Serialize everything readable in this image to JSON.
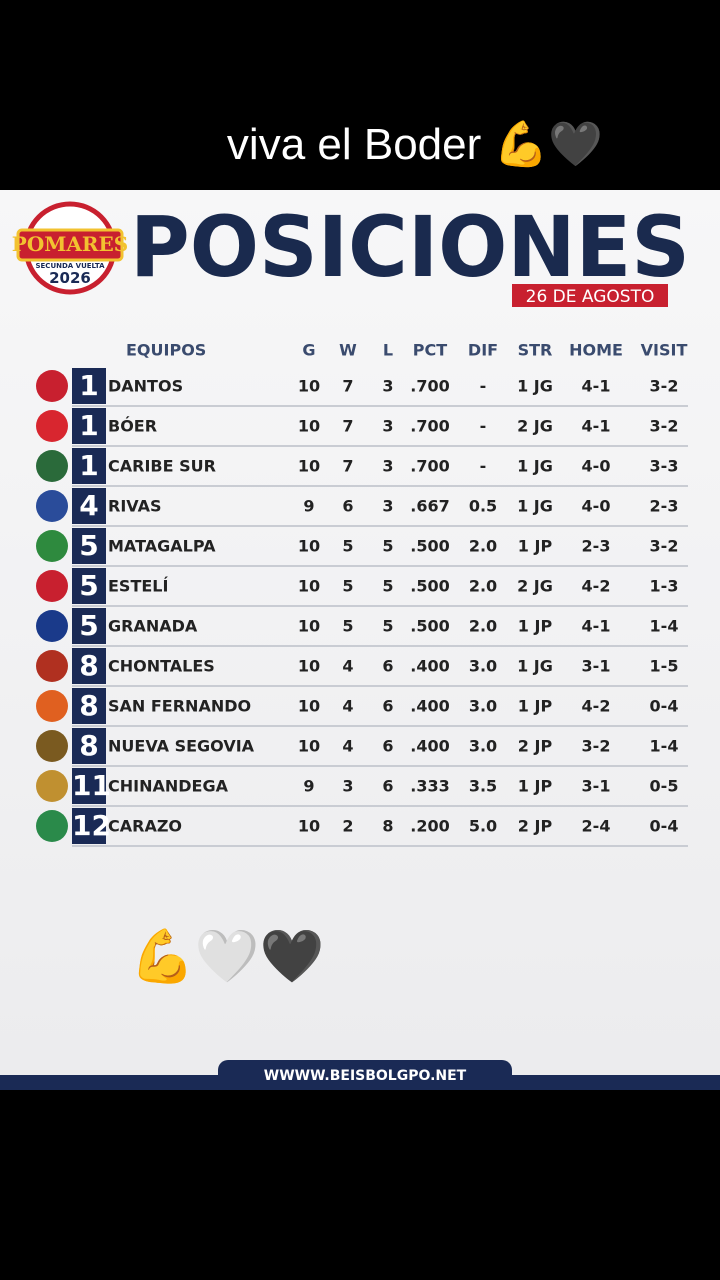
{
  "caption": "viva el Boder 💪🖤",
  "logo": {
    "name": "POMARES",
    "subtitle": "SECUNDA VUELTA",
    "year": "2026"
  },
  "header": {
    "title": "POSICIONES",
    "date": "26 DE AGOSTO"
  },
  "table": {
    "columns": [
      "EQUIPOS",
      "G",
      "W",
      "L",
      "PCT",
      "DIF",
      "STR",
      "HOME",
      "VISIT"
    ],
    "rows": [
      [
        "1",
        "DANTOS",
        "10",
        "7",
        "3",
        ".700",
        "-",
        "1 JG",
        "4-1",
        "3-2"
      ],
      [
        "1",
        "BÓER",
        "10",
        "7",
        "3",
        ".700",
        "-",
        "2 JG",
        "4-1",
        "3-2"
      ],
      [
        "1",
        "CARIBE SUR",
        "10",
        "7",
        "3",
        ".700",
        "-",
        "1 JG",
        "4-0",
        "3-3"
      ],
      [
        "4",
        "RIVAS",
        "9",
        "6",
        "3",
        ".667",
        "0.5",
        "1 JG",
        "4-0",
        "2-3"
      ],
      [
        "5",
        "MATAGALPA",
        "10",
        "5",
        "5",
        ".500",
        "2.0",
        "1 JP",
        "2-3",
        "3-2"
      ],
      [
        "5",
        "ESTELÍ",
        "10",
        "5",
        "5",
        ".500",
        "2.0",
        "2 JG",
        "4-2",
        "1-3"
      ],
      [
        "5",
        "GRANADA",
        "10",
        "5",
        "5",
        ".500",
        "2.0",
        "1 JP",
        "4-1",
        "1-4"
      ],
      [
        "8",
        "CHONTALES",
        "10",
        "4",
        "6",
        ".400",
        "3.0",
        "1 JG",
        "3-1",
        "1-5"
      ],
      [
        "8",
        "SAN FERNANDO",
        "10",
        "4",
        "6",
        ".400",
        "3.0",
        "1 JP",
        "4-2",
        "0-4"
      ],
      [
        "8",
        "NUEVA SEGOVIA",
        "10",
        "4",
        "6",
        ".400",
        "3.0",
        "2 JP",
        "3-2",
        "1-4"
      ],
      [
        "11",
        "CHINANDEGA",
        "9",
        "3",
        "6",
        ".333",
        "3.5",
        "1 JP",
        "3-1",
        "0-5"
      ],
      [
        "12",
        "CARAZO",
        "10",
        "2",
        "8",
        ".200",
        "5.0",
        "2 JP",
        "2-4",
        "0-4"
      ]
    ]
  },
  "emoji": "💪🤍🖤",
  "footer": "WWWW.BEISBOLGPO.NET"
}
